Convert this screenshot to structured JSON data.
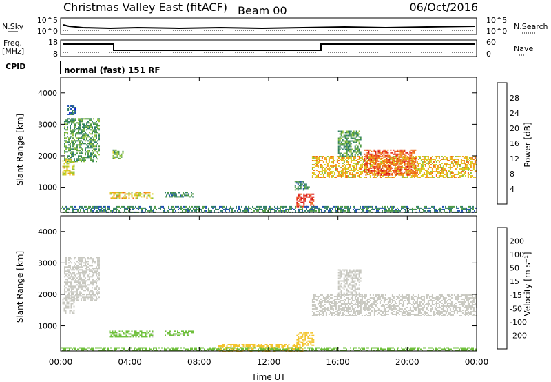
{
  "header": {
    "title": "Christmas Valley East (fitACF)",
    "beam": "Beam 00",
    "date": "06/Oct/2016"
  },
  "top_panels": {
    "noise": {
      "left_label": "N.Sky",
      "right_label": "N.Search",
      "left_ticks": [
        "10^5",
        "10^0"
      ],
      "right_ticks": [
        "10^5",
        "10^0"
      ]
    },
    "freq": {
      "left_label_1": "Freq.",
      "left_label_2": "[MHz]",
      "right_label": "Nave",
      "left_ticks": [
        "18",
        "8"
      ],
      "right_ticks": [
        "60",
        "0"
      ]
    },
    "cpid_label": "CPID",
    "cpid_text": "normal (fast) 151 RF"
  },
  "chart_data": [
    {
      "type": "heatmap",
      "name_key": "power",
      "ylabel": "Slant Range [km]",
      "y_ticks": [
        1000,
        2000,
        3000,
        4000
      ],
      "ylim": [
        200,
        4500
      ],
      "x_ticks": [
        "00:00",
        "04:00",
        "08:00",
        "12:00",
        "16:00",
        "20:00",
        "00:00"
      ],
      "xlim_hours": [
        0,
        24
      ],
      "colorbar": {
        "label": "Power [dB]",
        "ticks": [
          "4",
          "8",
          "12",
          "16",
          "20",
          "24",
          "28"
        ],
        "colors": [
          "#0a1fd6",
          "#1f4fb0",
          "#2f7d68",
          "#4f9a44",
          "#8ec23c",
          "#d8cf20",
          "#f2a11a",
          "#ef6a16",
          "#e8361a",
          "#d71414"
        ]
      },
      "regions": [
        {
          "t0": 0.1,
          "t1": 0.8,
          "r0": 1400,
          "r1": 1900,
          "value": 16
        },
        {
          "t0": 0.2,
          "t1": 2.2,
          "r0": 1800,
          "r1": 3200,
          "value": 10
        },
        {
          "t0": 0.4,
          "t1": 0.8,
          "r0": 3300,
          "r1": 3600,
          "value": 6
        },
        {
          "t0": 3.0,
          "t1": 3.6,
          "r0": 1900,
          "r1": 2200,
          "value": 12
        },
        {
          "t0": 2.8,
          "t1": 5.3,
          "r0": 650,
          "r1": 850,
          "value": 18
        },
        {
          "t0": 6.0,
          "t1": 7.6,
          "r0": 700,
          "r1": 850,
          "value": 8
        },
        {
          "t0": 13.6,
          "t1": 14.6,
          "r0": 400,
          "r1": 800,
          "value": 26
        },
        {
          "t0": 13.5,
          "t1": 14.3,
          "r0": 900,
          "r1": 1200,
          "value": 8
        },
        {
          "t0": 14.5,
          "t1": 24.0,
          "r0": 1300,
          "r1": 2000,
          "value": 18
        },
        {
          "t0": 16.0,
          "t1": 17.3,
          "r0": 2000,
          "r1": 2800,
          "value": 10
        },
        {
          "t0": 17.5,
          "t1": 20.5,
          "r0": 1400,
          "r1": 2200,
          "value": 24
        },
        {
          "t0": 0.0,
          "t1": 24.0,
          "r0": 200,
          "r1": 400,
          "value": 8
        }
      ]
    },
    {
      "type": "heatmap",
      "name_key": "velocity",
      "ylabel": "Slant Range [km]",
      "y_ticks": [
        1000,
        2000,
        3000,
        4000
      ],
      "ylim": [
        200,
        4500
      ],
      "x_ticks": [
        "00:00",
        "04:00",
        "08:00",
        "12:00",
        "16:00",
        "20:00",
        "00:00"
      ],
      "xlabel": "Time UT",
      "xlim_hours": [
        0,
        24
      ],
      "colorbar": {
        "label": "Velocity [m s⁻¹]",
        "ticks": [
          "200",
          "100",
          "50",
          "15",
          "-15",
          "-50",
          "-100",
          "-200"
        ],
        "colors": [
          "#1d2fb8",
          "#2c6cc4",
          "#2f8a46",
          "#6fc03c",
          "#c8c8c0",
          "#f3c42e",
          "#f19214",
          "#ec5416",
          "#d81414"
        ]
      },
      "regions": [
        {
          "t0": 0.1,
          "t1": 0.8,
          "r0": 1400,
          "r1": 1900,
          "value": 0
        },
        {
          "t0": 0.2,
          "t1": 2.2,
          "r0": 1800,
          "r1": 3200,
          "value": 0
        },
        {
          "t0": 2.8,
          "t1": 5.3,
          "r0": 650,
          "r1": 850,
          "value": 20
        },
        {
          "t0": 6.0,
          "t1": 7.6,
          "r0": 700,
          "r1": 850,
          "value": 20
        },
        {
          "t0": 13.6,
          "t1": 14.6,
          "r0": 400,
          "r1": 800,
          "value": -30
        },
        {
          "t0": 14.5,
          "t1": 24.0,
          "r0": 1300,
          "r1": 2000,
          "value": 0
        },
        {
          "t0": 16.0,
          "t1": 17.3,
          "r0": 2000,
          "r1": 2800,
          "value": 0
        },
        {
          "t0": 9.0,
          "t1": 14.0,
          "r0": 200,
          "r1": 420,
          "value": -40
        },
        {
          "t0": 0.0,
          "t1": 24.0,
          "r0": 200,
          "r1": 320,
          "value": 30
        }
      ]
    }
  ]
}
